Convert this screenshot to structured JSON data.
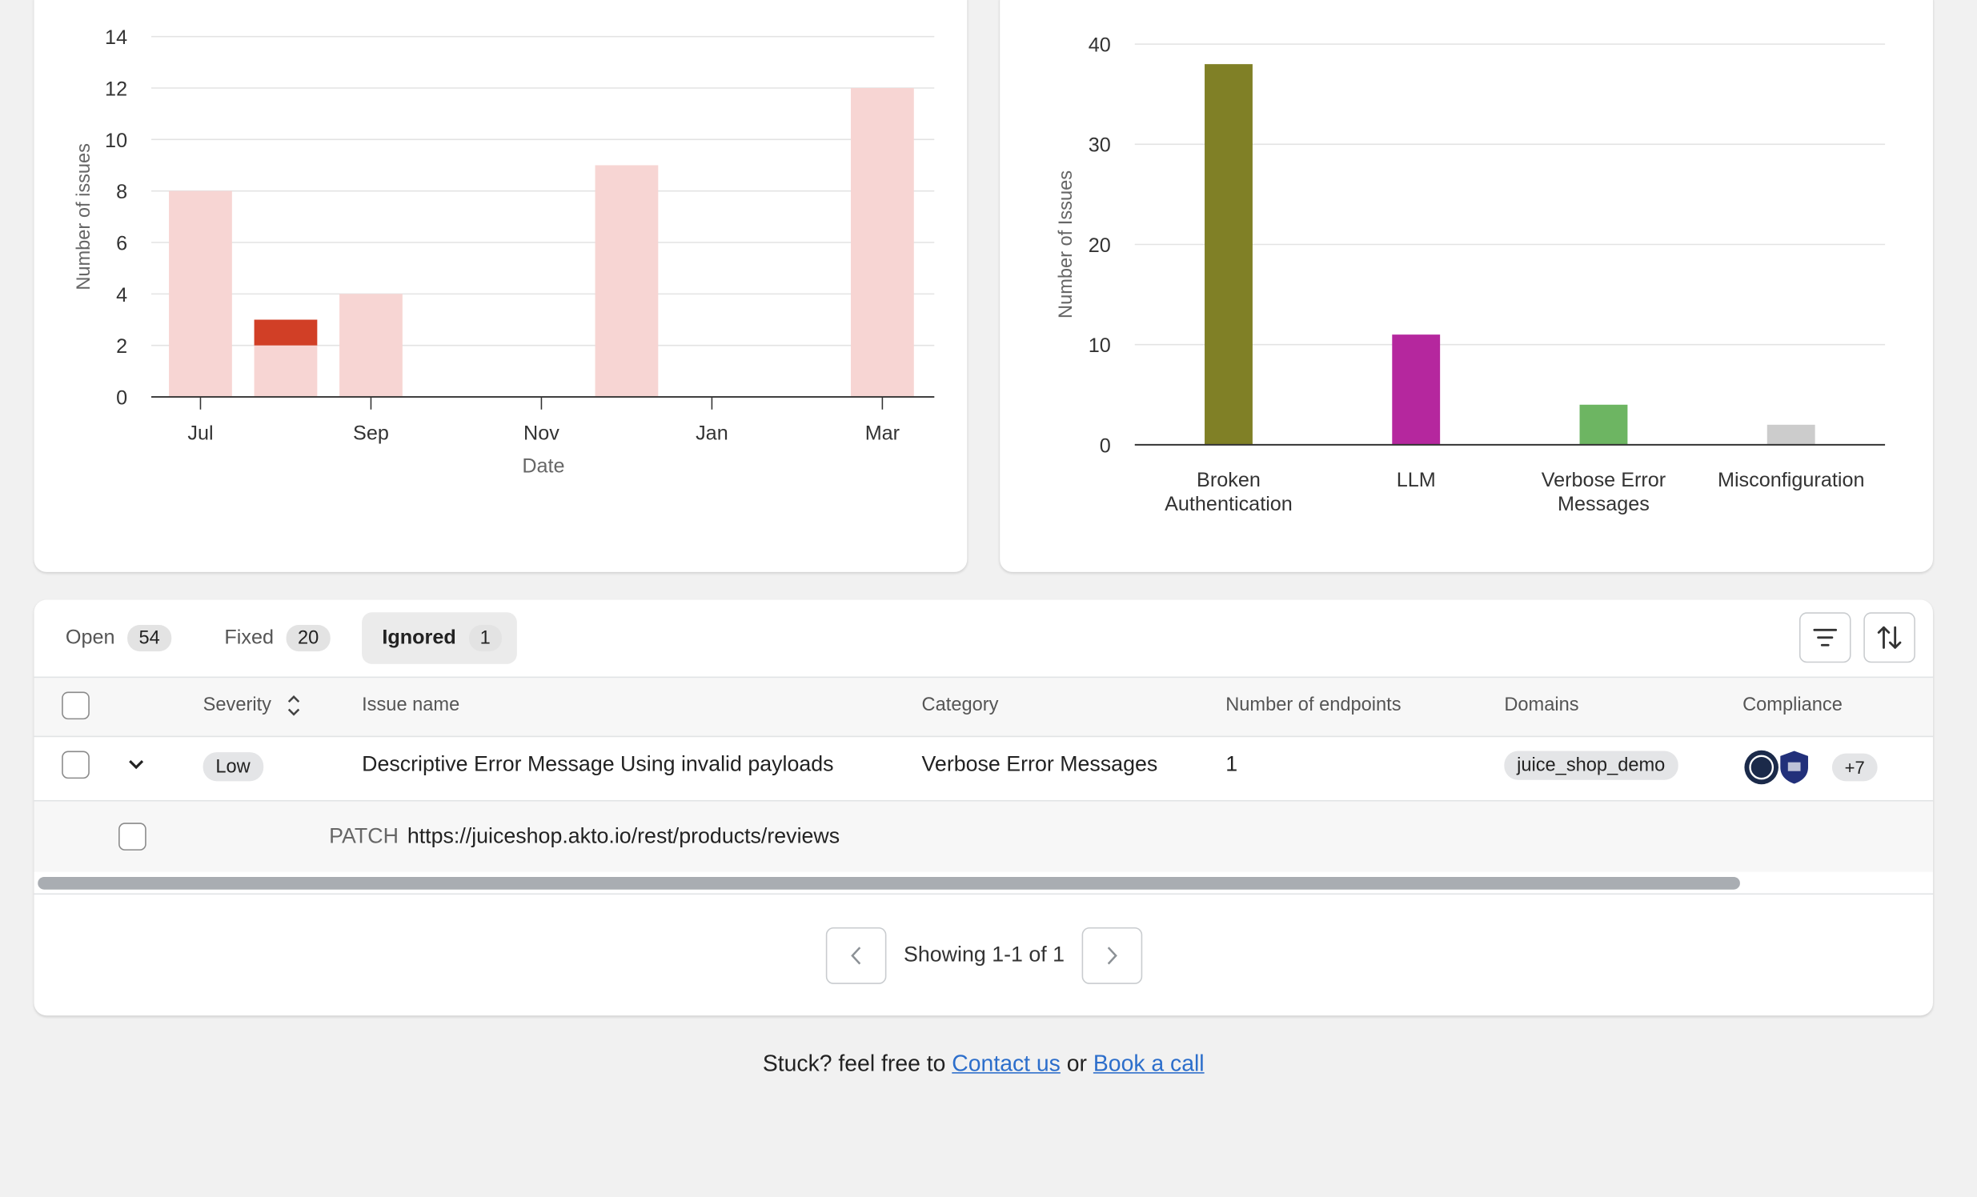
{
  "chart_data": [
    {
      "type": "bar",
      "stacked": true,
      "categories": [
        "Jul",
        null,
        "Sep",
        null,
        "Nov",
        null,
        "Jan",
        null,
        "Mar"
      ],
      "series": [
        {
          "color": "#f7d5d3",
          "values": [
            8,
            2,
            4,
            0,
            0,
            9,
            0,
            0,
            12
          ]
        },
        {
          "color": "#d13f26",
          "values": [
            0,
            1,
            0,
            0,
            0,
            0,
            0,
            0,
            0
          ]
        }
      ],
      "x_label": "Date",
      "y_label": "Number of issues",
      "ylim": [
        0,
        14
      ],
      "yticks": [
        0,
        2,
        4,
        6,
        8,
        10,
        12,
        14
      ],
      "grid": true
    },
    {
      "type": "bar",
      "categories": [
        "Broken Authentication",
        "LLM",
        "Verbose Error Messages",
        "Misconfiguration"
      ],
      "values": [
        38,
        11,
        4,
        2
      ],
      "colors": [
        "#808026",
        "#b5279e",
        "#6db562",
        "#cccccc"
      ],
      "y_label": "Number of Issues",
      "ylim": [
        0,
        40
      ],
      "yticks": [
        0,
        10,
        20,
        30,
        40
      ],
      "grid": true
    }
  ],
  "tabs": [
    {
      "label": "Open",
      "count": 54
    },
    {
      "label": "Fixed",
      "count": 20
    },
    {
      "label": "Ignored",
      "count": 1
    }
  ],
  "active_tab": 2,
  "table": {
    "columns": [
      "Severity",
      "Issue name",
      "Category",
      "Number of endpoints",
      "Domains",
      "Compliance"
    ],
    "rows": [
      {
        "severity": "Low",
        "issue_name": "Descriptive Error Message Using invalid payloads",
        "category": "Verbose Error Messages",
        "endpoints": 1,
        "domain": "juice_shop_demo",
        "compliance_more": "+7",
        "endpoint": {
          "method": "PATCH",
          "url": "https://juiceshop.akto.io/rest/products/reviews"
        }
      }
    ]
  },
  "pagination": "Showing 1-1 of 1",
  "footer": {
    "text": "Stuck? feel free to",
    "link1": "Contact us",
    "joiner": "or",
    "link2": "Book a call"
  }
}
